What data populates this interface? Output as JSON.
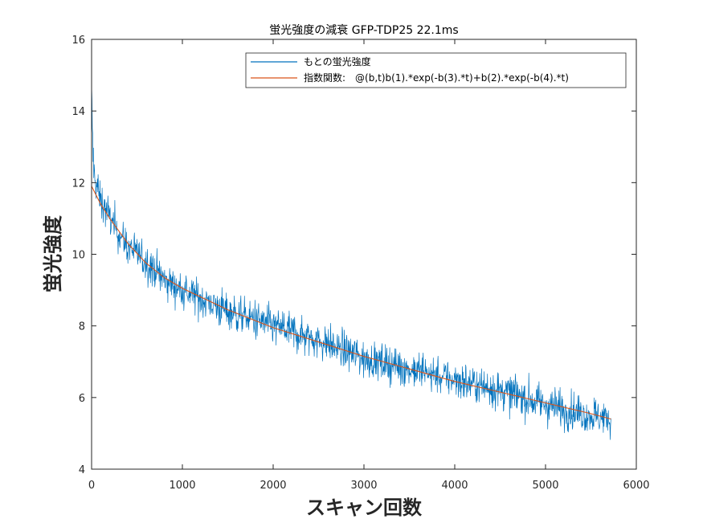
{
  "chart_data": {
    "type": "line",
    "title": "蛍光強度の減衰 GFP-TDP25 22.1ms",
    "xlabel": "スキャン回数",
    "ylabel": "蛍光強度",
    "xlim": [
      0,
      6000
    ],
    "ylim": [
      4,
      16
    ],
    "xticks": [
      0,
      1000,
      2000,
      3000,
      4000,
      5000,
      6000
    ],
    "yticks": [
      4,
      6,
      8,
      10,
      12,
      14,
      16
    ],
    "grid": false,
    "legend_position": "top-right",
    "x_end": 5720,
    "series": [
      {
        "name": "もとの蛍光強度",
        "color": "#0072BD",
        "style": "noisy",
        "noise_amplitude": 0.45,
        "points": [
          [
            0,
            14.3
          ],
          [
            10,
            13.2
          ],
          [
            30,
            12.2
          ],
          [
            100,
            11.5
          ],
          [
            200,
            11.0
          ],
          [
            400,
            10.2
          ],
          [
            600,
            9.8
          ],
          [
            800,
            9.3
          ],
          [
            1000,
            9.0
          ],
          [
            1500,
            8.4
          ],
          [
            2000,
            8.0
          ],
          [
            2500,
            7.6
          ],
          [
            3000,
            7.1
          ],
          [
            3500,
            6.8
          ],
          [
            4000,
            6.5
          ],
          [
            4500,
            6.2
          ],
          [
            5000,
            5.8
          ],
          [
            5500,
            5.5
          ],
          [
            5720,
            5.4
          ]
        ]
      },
      {
        "name": "指数関数:　@(b,t)b(1).*exp(-b(3).*t)+b(2).*exp(-b(4).*t)",
        "color": "#D95319",
        "style": "smooth",
        "points": [
          [
            0,
            11.9
          ],
          [
            100,
            11.4
          ],
          [
            200,
            11.0
          ],
          [
            400,
            10.3
          ],
          [
            600,
            9.75
          ],
          [
            800,
            9.35
          ],
          [
            1000,
            9.05
          ],
          [
            1500,
            8.45
          ],
          [
            2000,
            7.95
          ],
          [
            2500,
            7.55
          ],
          [
            3000,
            7.15
          ],
          [
            3500,
            6.8
          ],
          [
            4000,
            6.45
          ],
          [
            4500,
            6.15
          ],
          [
            5000,
            5.85
          ],
          [
            5500,
            5.55
          ],
          [
            5720,
            5.4
          ]
        ]
      }
    ]
  }
}
